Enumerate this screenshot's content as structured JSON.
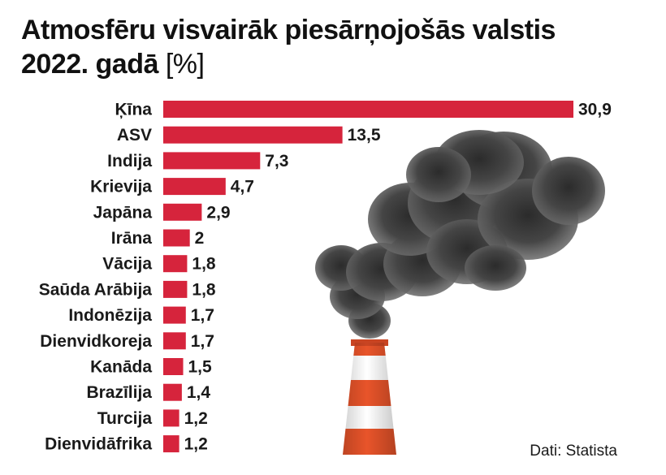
{
  "chart_data": {
    "type": "bar",
    "orientation": "horizontal",
    "title_line1": "Atmosfēru visvairāk piesārņojošās valstis",
    "title_year": "2022. gadā",
    "title_unit": "[%]",
    "categories": [
      "Ķīna",
      "ASV",
      "Indija",
      "Krievija",
      "Japāna",
      "Irāna",
      "Vācija",
      "Saūda Arābija",
      "Indonēzija",
      "Dienvidkoreja",
      "Kanāda",
      "Brazīlija",
      "Turcija",
      "Dienvidāfrika"
    ],
    "values": [
      30.9,
      13.5,
      7.3,
      4.7,
      2.9,
      2,
      1.8,
      1.8,
      1.7,
      1.7,
      1.5,
      1.4,
      1.2,
      1.2
    ],
    "value_labels": [
      "30,9",
      "13,5",
      "7,3",
      "4,7",
      "2,9",
      "2",
      "1,8",
      "1,8",
      "1,7",
      "1,7",
      "1,5",
      "1,4",
      "1,2",
      "1,2"
    ],
    "bar_color": "#d6243c",
    "source": "Dati: Statista"
  },
  "illustration": {
    "icon": "factory-smokestack-icon",
    "stripe_colors": [
      "#e8542a",
      "#ffffff"
    ],
    "smoke_color": "#3a3a3a"
  }
}
